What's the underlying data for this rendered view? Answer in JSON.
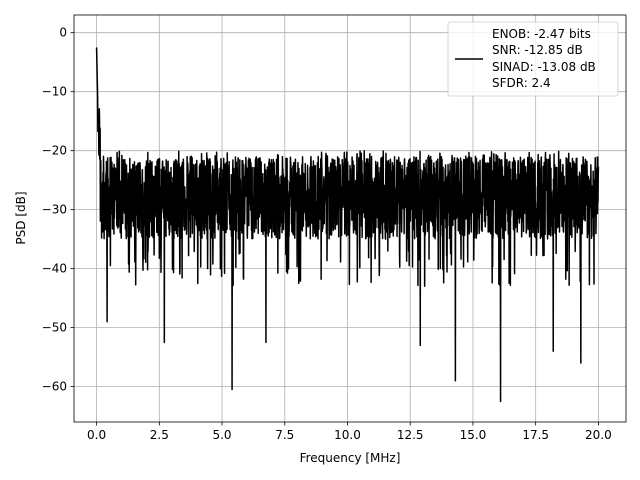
{
  "chart_data": {
    "type": "line",
    "title": "",
    "xlabel": "Frequency [MHz]",
    "ylabel": "PSD [dB]",
    "xlim": [
      -0.9,
      21.1
    ],
    "ylim": [
      -66,
      3
    ],
    "xticks": [
      0.0,
      2.5,
      5.0,
      7.5,
      10.0,
      12.5,
      15.0,
      17.5,
      20.0
    ],
    "xtick_labels": [
      "0.0",
      "2.5",
      "5.0",
      "7.5",
      "10.0",
      "12.5",
      "15.0",
      "17.5",
      "20.0"
    ],
    "yticks": [
      0,
      -10,
      -20,
      -30,
      -40,
      -50,
      -60
    ],
    "ytick_labels": [
      "0",
      "−10",
      "−20",
      "−30",
      "−40",
      "−50",
      "−60"
    ],
    "grid": true,
    "legend_position": "top-right",
    "legend_lines": [
      "ENOB: -2.47 bits",
      "SNR: -12.85 dB",
      "SINAD: -13.08 dB",
      "SFDR: 2.4"
    ],
    "series": [
      {
        "color": "#000000",
        "x_range": [
          0,
          20
        ],
        "peak": {
          "x": 0.0,
          "y": -2.5
        },
        "noise_upper_envelope_db": -20,
        "noise_typical_db": -28,
        "notable_dips": [
          {
            "x": 0.42,
            "y": -49
          },
          {
            "x": 2.7,
            "y": -52.5
          },
          {
            "x": 5.4,
            "y": -60.5
          },
          {
            "x": 6.75,
            "y": -52.5
          },
          {
            "x": 12.9,
            "y": -53
          },
          {
            "x": 14.3,
            "y": -59
          },
          {
            "x": 16.1,
            "y": -62.5
          },
          {
            "x": 18.2,
            "y": -54
          },
          {
            "x": 19.3,
            "y": -56
          }
        ]
      }
    ]
  }
}
